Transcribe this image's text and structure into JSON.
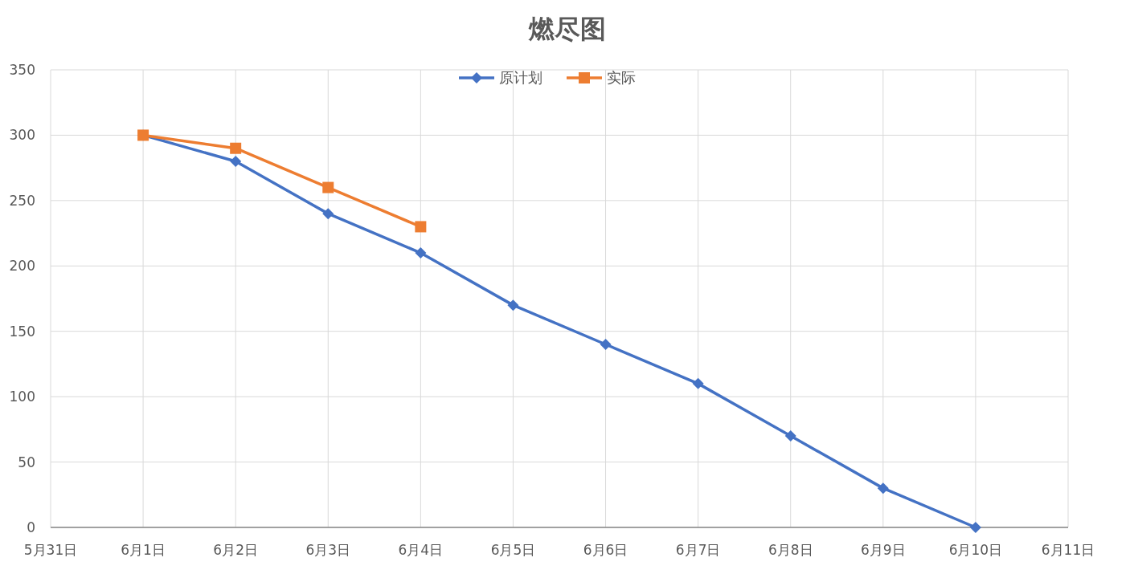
{
  "chart_data": {
    "type": "line",
    "title": "燃尽图",
    "categories": [
      "5月31日",
      "6月1日",
      "6月2日",
      "6月3日",
      "6月4日",
      "6月5日",
      "6月6日",
      "6月7日",
      "6月8日",
      "6月9日",
      "6月10日",
      "6月11日"
    ],
    "series": [
      {
        "name": "原计划",
        "color": "#4472c4",
        "marker": "diamond",
        "values": [
          null,
          300,
          280,
          240,
          210,
          170,
          140,
          110,
          70,
          30,
          0,
          null
        ]
      },
      {
        "name": "实际",
        "color": "#ed7d31",
        "marker": "square",
        "values": [
          null,
          300,
          290,
          260,
          230,
          null,
          null,
          null,
          null,
          null,
          null,
          null
        ]
      }
    ],
    "ylim": [
      0,
      350
    ],
    "yticks": [
      0,
      50,
      100,
      150,
      200,
      250,
      300,
      350
    ],
    "grid": true,
    "legend": "top",
    "line_style": "solid"
  }
}
